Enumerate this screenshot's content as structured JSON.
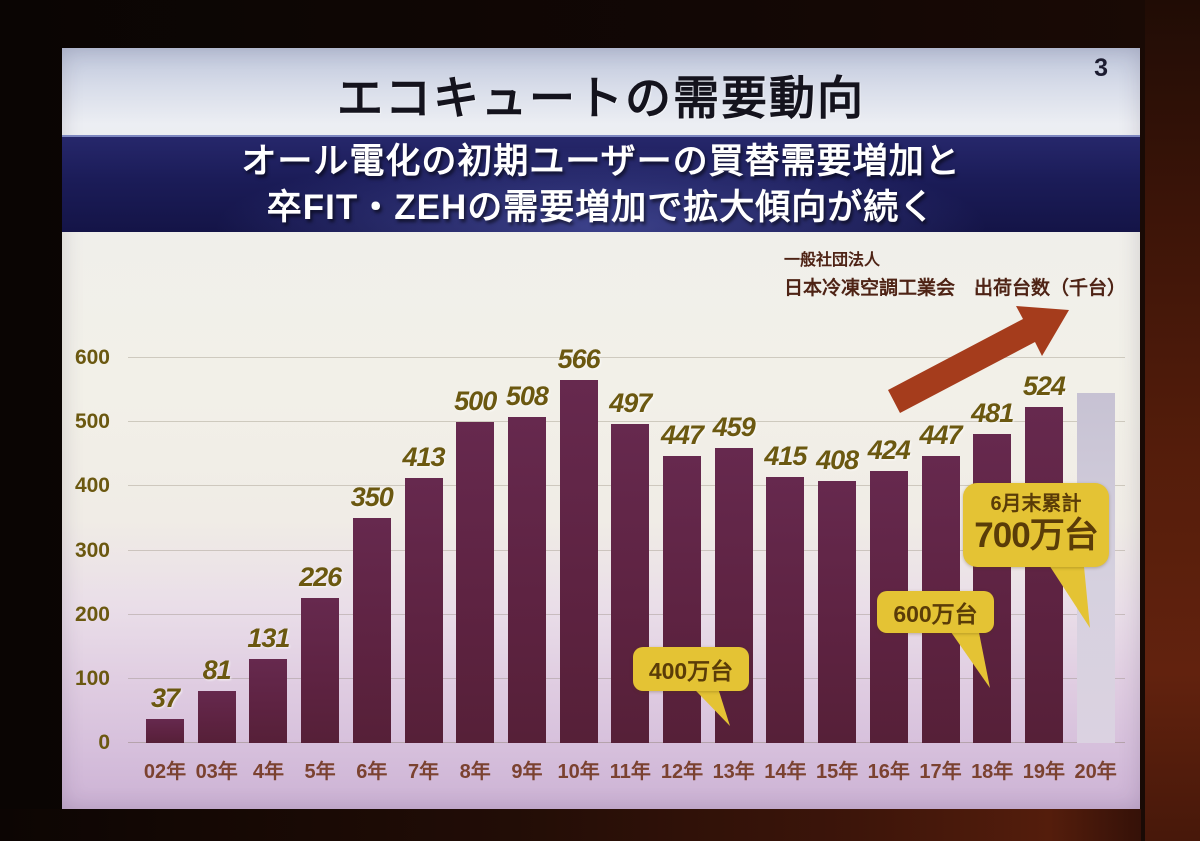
{
  "page": {
    "number": "3"
  },
  "title": "エコキュートの需要動向",
  "banner": {
    "line1": "オール電化の初期ユーザーの買替需要増加と",
    "line2": "卒FIT・ZEHの需要増加で拡大傾向が続く"
  },
  "chart_data": {
    "type": "bar",
    "title": "エコキュートの需要動向",
    "source_line1": "一般社団法人",
    "source_line2": "日本冷凍空調工業会　出荷台数（千台）",
    "unit": "千台",
    "categories": [
      "02年",
      "03年",
      "4年",
      "5年",
      "6年",
      "7年",
      "8年",
      "9年",
      "10年",
      "11年",
      "12年",
      "13年",
      "14年",
      "15年",
      "16年",
      "17年",
      "18年",
      "19年",
      "20年"
    ],
    "values": [
      37,
      81,
      131,
      226,
      350,
      413,
      500,
      508,
      566,
      497,
      447,
      459,
      415,
      408,
      424,
      447,
      481,
      524,
      545
    ],
    "bar_value_labels": [
      "37",
      "81",
      "131",
      "226",
      "350",
      "413",
      "500",
      "508",
      "566",
      "497",
      "447",
      "459",
      "415",
      "408",
      "424",
      "447",
      "481",
      "524",
      ""
    ],
    "ylim": [
      0,
      600
    ],
    "yticks": [
      0,
      100,
      200,
      300,
      400,
      500,
      600
    ],
    "grid": true,
    "last_bar_style": "light",
    "annotations": [
      {
        "text": "400万台"
      },
      {
        "text": "600万台"
      },
      {
        "line1": "6月末累計",
        "line2": "700万台"
      }
    ],
    "colors": {
      "bar": "#5e2342",
      "last_bar": "#d6d1df",
      "value_label": "#6b5810",
      "x_axis_label": "#7b4230",
      "callout_bg": "#e4c334",
      "callout_text": "#5a3c08",
      "arrow": "#a53c1c",
      "banner_bg": "#1b1c58",
      "banner_text": "#ffffff"
    }
  }
}
